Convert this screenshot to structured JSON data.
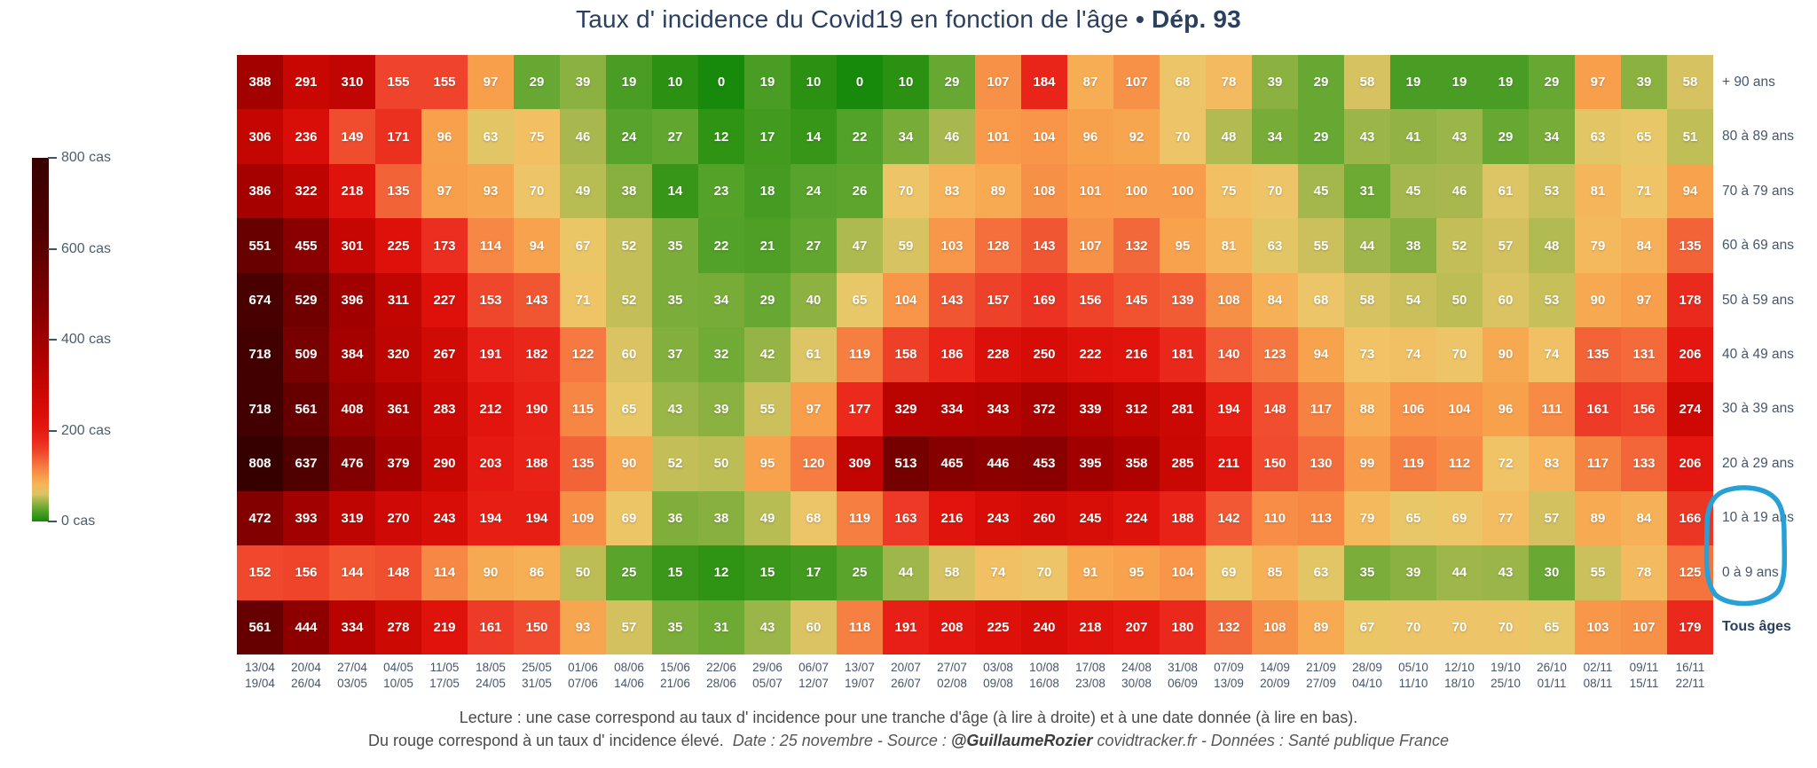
{
  "title": {
    "main": "Taux d' incidence du Covid19 en fonction de l'âge",
    "bullet": "•",
    "highlight": "Dép. 93"
  },
  "colorbar": {
    "tick_labels": [
      "800 cas",
      "600 cas",
      "400 cas",
      "200 cas",
      "0 cas"
    ]
  },
  "chart_data": {
    "type": "heatmap",
    "title": "Taux d' incidence du Covid19 en fonction de l'âge • Dép. 93",
    "value_unit": "cas",
    "value_range": [
      0,
      800
    ],
    "legend_position": "left",
    "row_labels": [
      "+ 90 ans",
      "80 à 89 ans",
      "70 à 79 ans",
      "60 à 69 ans",
      "50 à 59 ans",
      "40 à 49 ans",
      "30 à 39 ans",
      "20 à 29 ans",
      "10 à 19 ans",
      "0 à 9 ans",
      "Tous âges"
    ],
    "col_labels_start": [
      "13/04",
      "20/04",
      "27/04",
      "04/05",
      "11/05",
      "18/05",
      "25/05",
      "01/06",
      "08/06",
      "15/06",
      "22/06",
      "29/06",
      "06/07",
      "13/07",
      "20/07",
      "27/07",
      "03/08",
      "10/08",
      "17/08",
      "24/08",
      "31/08",
      "07/09",
      "14/09",
      "21/09",
      "28/09",
      "05/10",
      "12/10",
      "19/10",
      "26/10",
      "02/11",
      "09/11",
      "16/11"
    ],
    "col_labels_end": [
      "19/04",
      "26/04",
      "03/05",
      "10/05",
      "17/05",
      "24/05",
      "31/05",
      "07/06",
      "14/06",
      "21/06",
      "28/06",
      "05/07",
      "12/07",
      "19/07",
      "26/07",
      "02/08",
      "09/08",
      "16/08",
      "23/08",
      "30/08",
      "06/09",
      "13/09",
      "20/09",
      "27/09",
      "04/10",
      "11/10",
      "18/10",
      "25/10",
      "01/11",
      "08/11",
      "15/11",
      "22/11"
    ],
    "values": [
      [
        388,
        291,
        310,
        155,
        155,
        97,
        29,
        39,
        19,
        10,
        0,
        19,
        10,
        0,
        10,
        29,
        107,
        184,
        87,
        107,
        68,
        78,
        39,
        29,
        58,
        19,
        19,
        19,
        29,
        97,
        39,
        58
      ],
      [
        306,
        236,
        149,
        171,
        96,
        63,
        75,
        46,
        24,
        27,
        12,
        17,
        14,
        22,
        34,
        46,
        101,
        104,
        96,
        92,
        70,
        48,
        34,
        29,
        43,
        41,
        43,
        29,
        34,
        63,
        65,
        51
      ],
      [
        386,
        322,
        218,
        135,
        97,
        93,
        70,
        49,
        38,
        14,
        23,
        18,
        24,
        26,
        70,
        83,
        89,
        108,
        101,
        100,
        100,
        75,
        70,
        45,
        31,
        45,
        46,
        61,
        53,
        81,
        71,
        94
      ],
      [
        551,
        455,
        301,
        225,
        173,
        114,
        94,
        67,
        52,
        35,
        22,
        21,
        27,
        47,
        59,
        103,
        128,
        143,
        107,
        132,
        95,
        81,
        63,
        55,
        44,
        38,
        52,
        57,
        48,
        79,
        84,
        135
      ],
      [
        674,
        529,
        396,
        311,
        227,
        153,
        143,
        71,
        52,
        35,
        34,
        29,
        40,
        65,
        104,
        143,
        157,
        169,
        156,
        145,
        139,
        108,
        84,
        68,
        58,
        54,
        50,
        60,
        53,
        90,
        97,
        178
      ],
      [
        718,
        509,
        384,
        320,
        267,
        191,
        182,
        122,
        60,
        37,
        32,
        42,
        61,
        119,
        158,
        186,
        228,
        250,
        222,
        216,
        181,
        140,
        123,
        94,
        73,
        74,
        70,
        90,
        74,
        135,
        131,
        206
      ],
      [
        718,
        561,
        408,
        361,
        283,
        212,
        190,
        115,
        65,
        43,
        39,
        55,
        97,
        177,
        329,
        334,
        343,
        372,
        339,
        312,
        281,
        194,
        148,
        117,
        88,
        106,
        104,
        96,
        111,
        161,
        156,
        274
      ],
      [
        808,
        637,
        476,
        379,
        290,
        203,
        188,
        135,
        90,
        52,
        50,
        95,
        120,
        309,
        513,
        465,
        446,
        453,
        395,
        358,
        285,
        211,
        150,
        130,
        99,
        119,
        112,
        72,
        83,
        117,
        133,
        206
      ],
      [
        472,
        393,
        319,
        270,
        243,
        194,
        194,
        109,
        69,
        36,
        38,
        49,
        68,
        119,
        163,
        216,
        243,
        260,
        245,
        224,
        188,
        142,
        110,
        113,
        79,
        65,
        69,
        77,
        57,
        89,
        84,
        166
      ],
      [
        152,
        156,
        144,
        148,
        114,
        90,
        86,
        50,
        25,
        15,
        12,
        15,
        17,
        25,
        44,
        58,
        74,
        70,
        91,
        95,
        104,
        69,
        85,
        63,
        35,
        39,
        44,
        43,
        30,
        55,
        78,
        125
      ],
      [
        561,
        444,
        334,
        278,
        219,
        161,
        150,
        93,
        57,
        35,
        31,
        43,
        60,
        118,
        191,
        208,
        225,
        240,
        218,
        207,
        180,
        132,
        108,
        89,
        67,
        70,
        70,
        70,
        65,
        103,
        107,
        179
      ]
    ],
    "color_scale": [
      [
        0,
        "#17890b"
      ],
      [
        12,
        "#2f9313"
      ],
      [
        19,
        "#4a9d24"
      ],
      [
        25,
        "#5aa42c"
      ],
      [
        30,
        "#69a933"
      ],
      [
        36,
        "#7fae3b"
      ],
      [
        43,
        "#9ab548"
      ],
      [
        50,
        "#bcbd55"
      ],
      [
        58,
        "#d6c261"
      ],
      [
        65,
        "#e7c767"
      ],
      [
        72,
        "#f0c367"
      ],
      [
        80,
        "#f5b75c"
      ],
      [
        90,
        "#f7a951"
      ],
      [
        100,
        "#f89b4a"
      ],
      [
        112,
        "#f78a45"
      ],
      [
        125,
        "#f5743e"
      ],
      [
        138,
        "#f25e36"
      ],
      [
        150,
        "#f04b2e"
      ],
      [
        162,
        "#ed3a26"
      ],
      [
        175,
        "#eb2c1e"
      ],
      [
        190,
        "#e82016"
      ],
      [
        210,
        "#e2150e"
      ],
      [
        235,
        "#da0e08"
      ],
      [
        265,
        "#d10a05"
      ],
      [
        300,
        "#c50602"
      ],
      [
        340,
        "#b60300"
      ],
      [
        385,
        "#a40100"
      ],
      [
        430,
        "#930000"
      ],
      [
        480,
        "#800000"
      ],
      [
        530,
        "#700000"
      ],
      [
        590,
        "#5d0000"
      ],
      [
        660,
        "#4b0000"
      ],
      [
        730,
        "#400000"
      ],
      [
        800,
        "#360000"
      ]
    ]
  },
  "annotation": {
    "shape": "hand-drawn-circle",
    "color": "#27a0d6",
    "circled_labels": [
      "10 à 19 ans",
      "0 à 9 ans"
    ]
  },
  "footer": {
    "line1": "Lecture : une case correspond au taux d' incidence pour une tranche d'âge (à lire à droite) et à une date donnée (à lire en bas).",
    "line2_regular": "Du rouge correspond à un taux d' incidence élevé.",
    "line2_italic_prefix": "Date : 25 novembre - Source : ",
    "line2_handle": "@GuillaumeRozier",
    "line2_italic_suffix": " covidtracker.fr - Données : Santé publique France"
  }
}
